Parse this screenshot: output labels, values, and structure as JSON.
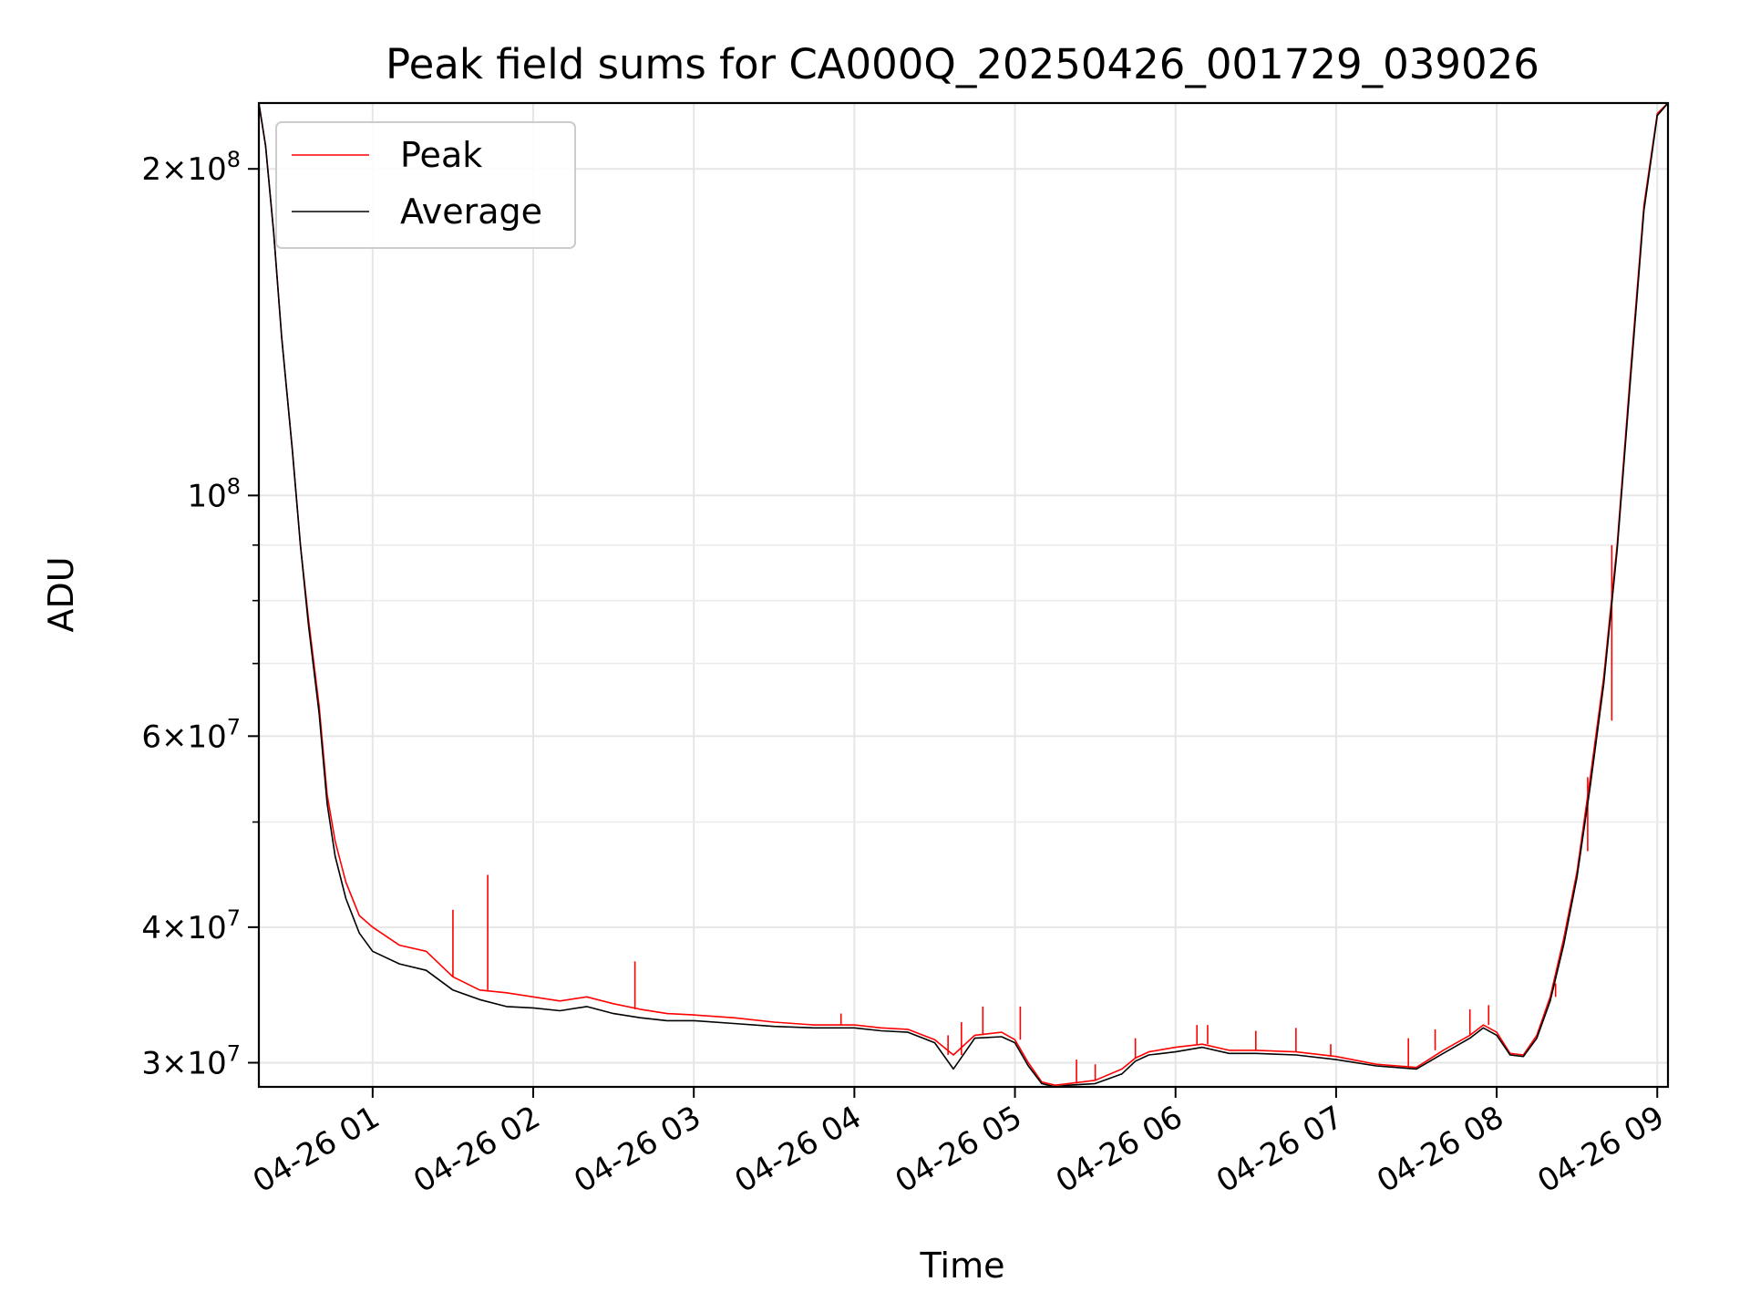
{
  "chart_data": {
    "type": "line",
    "title": "Peak field sums for CA000Q_20250426_001729_039026",
    "xlabel": "Time",
    "ylabel": "ADU",
    "yscale": "log",
    "ylim": [
      28500000,
      230000000
    ],
    "xlim": [
      "2025-04-26 00:17:29",
      "2025-04-26 09:04:00"
    ],
    "grid": true,
    "legend": "upper-left",
    "x_ticks": [
      {
        "value": "2025-04-26 01:00",
        "label": "04-26 01"
      },
      {
        "value": "2025-04-26 02:00",
        "label": "04-26 02"
      },
      {
        "value": "2025-04-26 03:00",
        "label": "04-26 03"
      },
      {
        "value": "2025-04-26 04:00",
        "label": "04-26 04"
      },
      {
        "value": "2025-04-26 05:00",
        "label": "04-26 05"
      },
      {
        "value": "2025-04-26 06:00",
        "label": "04-26 06"
      },
      {
        "value": "2025-04-26 07:00",
        "label": "04-26 07"
      },
      {
        "value": "2025-04-26 08:00",
        "label": "04-26 08"
      },
      {
        "value": "2025-04-26 09:00",
        "label": "04-26 09"
      }
    ],
    "y_ticks": [
      {
        "value": 30000000,
        "mant": "3",
        "exp": "7"
      },
      {
        "value": 40000000,
        "mant": "4",
        "exp": "7"
      },
      {
        "value": 60000000,
        "mant": "6",
        "exp": "7"
      },
      {
        "value": 100000000,
        "mant": "",
        "exp": "8"
      },
      {
        "value": 200000000,
        "mant": "2",
        "exp": "8"
      }
    ],
    "y_minor_ticks": [
      50000000,
      70000000,
      80000000,
      90000000
    ],
    "series": [
      {
        "name": "Peak",
        "color": "#ff0000",
        "x": [
          "2025-04-26 00:17:29",
          "2025-04-26 00:20",
          "2025-04-26 00:23",
          "2025-04-26 00:26",
          "2025-04-26 00:30",
          "2025-04-26 00:33",
          "2025-04-26 00:36",
          "2025-04-26 00:40",
          "2025-04-26 00:43",
          "2025-04-26 00:46",
          "2025-04-26 00:50",
          "2025-04-26 00:55",
          "2025-04-26 01:00",
          "2025-04-26 01:10",
          "2025-04-26 01:20",
          "2025-04-26 01:30",
          "2025-04-26 01:40",
          "2025-04-26 01:50",
          "2025-04-26 02:00",
          "2025-04-26 02:10",
          "2025-04-26 02:20",
          "2025-04-26 02:30",
          "2025-04-26 02:40",
          "2025-04-26 02:50",
          "2025-04-26 03:00",
          "2025-04-26 03:15",
          "2025-04-26 03:30",
          "2025-04-26 03:45",
          "2025-04-26 04:00",
          "2025-04-26 04:10",
          "2025-04-26 04:20",
          "2025-04-26 04:30",
          "2025-04-26 04:37",
          "2025-04-26 04:45",
          "2025-04-26 04:55",
          "2025-04-26 05:00",
          "2025-04-26 05:05",
          "2025-04-26 05:10",
          "2025-04-26 05:15",
          "2025-04-26 05:20",
          "2025-04-26 05:30",
          "2025-04-26 05:40",
          "2025-04-26 05:45",
          "2025-04-26 05:50",
          "2025-04-26 06:00",
          "2025-04-26 06:10",
          "2025-04-26 06:20",
          "2025-04-26 06:30",
          "2025-04-26 06:45",
          "2025-04-26 07:00",
          "2025-04-26 07:15",
          "2025-04-26 07:30",
          "2025-04-26 07:40",
          "2025-04-26 07:50",
          "2025-04-26 07:55",
          "2025-04-26 08:00",
          "2025-04-26 08:05",
          "2025-04-26 08:10",
          "2025-04-26 08:15",
          "2025-04-26 08:20",
          "2025-04-26 08:25",
          "2025-04-26 08:30",
          "2025-04-26 08:35",
          "2025-04-26 08:40",
          "2025-04-26 08:45",
          "2025-04-26 08:50",
          "2025-04-26 08:55",
          "2025-04-26 09:00",
          "2025-04-26 09:04"
        ],
        "y": [
          230000000,
          210000000,
          175000000,
          140000000,
          110000000,
          90000000,
          77000000,
          64000000,
          53000000,
          48000000,
          44000000,
          41000000,
          40000000,
          38500000,
          38000000,
          36000000,
          35000000,
          34800000,
          34500000,
          34200000,
          34500000,
          34000000,
          33600000,
          33300000,
          33200000,
          33000000,
          32700000,
          32500000,
          32500000,
          32300000,
          32200000,
          31500000,
          30500000,
          31800000,
          32000000,
          31500000,
          30000000,
          28800000,
          28600000,
          28700000,
          28900000,
          29600000,
          30300000,
          30700000,
          31000000,
          31200000,
          30800000,
          30800000,
          30700000,
          30400000,
          29900000,
          29700000,
          30800000,
          31800000,
          32500000,
          32000000,
          30600000,
          30500000,
          31800000,
          34500000,
          39000000,
          45000000,
          55000000,
          68000000,
          90000000,
          130000000,
          185000000,
          225000000,
          230000000
        ],
        "spikes": [
          {
            "x": "2025-04-26 01:30",
            "y": 41500000
          },
          {
            "x": "2025-04-26 01:43",
            "y": 44700000
          },
          {
            "x": "2025-04-26 02:38",
            "y": 37200000
          },
          {
            "x": "2025-04-26 03:55",
            "y": 33300000
          },
          {
            "x": "2025-04-26 04:35",
            "y": 31800000
          },
          {
            "x": "2025-04-26 04:40",
            "y": 32700000
          },
          {
            "x": "2025-04-26 04:48",
            "y": 33800000
          },
          {
            "x": "2025-04-26 05:02",
            "y": 33800000
          },
          {
            "x": "2025-04-26 05:23",
            "y": 30200000
          },
          {
            "x": "2025-04-26 05:30",
            "y": 29900000
          },
          {
            "x": "2025-04-26 05:45",
            "y": 31600000
          },
          {
            "x": "2025-04-26 06:08",
            "y": 32500000
          },
          {
            "x": "2025-04-26 06:12",
            "y": 32500000
          },
          {
            "x": "2025-04-26 06:30",
            "y": 32100000
          },
          {
            "x": "2025-04-26 06:45",
            "y": 32300000
          },
          {
            "x": "2025-04-26 06:58",
            "y": 31200000
          },
          {
            "x": "2025-04-26 07:27",
            "y": 31600000
          },
          {
            "x": "2025-04-26 07:37",
            "y": 32200000
          },
          {
            "x": "2025-04-26 07:50",
            "y": 33600000
          },
          {
            "x": "2025-04-26 07:57",
            "y": 33900000
          },
          {
            "x": "2025-04-26 08:22",
            "y": 35500000
          },
          {
            "x": "2025-04-26 08:34",
            "y": 47000000
          },
          {
            "x": "2025-04-26 08:43",
            "y": 62000000
          }
        ]
      },
      {
        "name": "Average",
        "color": "#000000",
        "x": [
          "2025-04-26 00:17:29",
          "2025-04-26 00:20",
          "2025-04-26 00:23",
          "2025-04-26 00:26",
          "2025-04-26 00:30",
          "2025-04-26 00:33",
          "2025-04-26 00:36",
          "2025-04-26 00:40",
          "2025-04-26 00:43",
          "2025-04-26 00:46",
          "2025-04-26 00:50",
          "2025-04-26 00:55",
          "2025-04-26 01:00",
          "2025-04-26 01:10",
          "2025-04-26 01:20",
          "2025-04-26 01:30",
          "2025-04-26 01:40",
          "2025-04-26 01:50",
          "2025-04-26 02:00",
          "2025-04-26 02:10",
          "2025-04-26 02:20",
          "2025-04-26 02:30",
          "2025-04-26 02:40",
          "2025-04-26 02:50",
          "2025-04-26 03:00",
          "2025-04-26 03:15",
          "2025-04-26 03:30",
          "2025-04-26 03:45",
          "2025-04-26 04:00",
          "2025-04-26 04:10",
          "2025-04-26 04:20",
          "2025-04-26 04:30",
          "2025-04-26 04:37",
          "2025-04-26 04:45",
          "2025-04-26 04:55",
          "2025-04-26 05:00",
          "2025-04-26 05:05",
          "2025-04-26 05:10",
          "2025-04-26 05:15",
          "2025-04-26 05:20",
          "2025-04-26 05:30",
          "2025-04-26 05:40",
          "2025-04-26 05:45",
          "2025-04-26 05:50",
          "2025-04-26 06:00",
          "2025-04-26 06:10",
          "2025-04-26 06:20",
          "2025-04-26 06:30",
          "2025-04-26 06:45",
          "2025-04-26 07:00",
          "2025-04-26 07:15",
          "2025-04-26 07:30",
          "2025-04-26 07:40",
          "2025-04-26 07:50",
          "2025-04-26 07:55",
          "2025-04-26 08:00",
          "2025-04-26 08:05",
          "2025-04-26 08:10",
          "2025-04-26 08:15",
          "2025-04-26 08:20",
          "2025-04-26 08:25",
          "2025-04-26 08:30",
          "2025-04-26 08:35",
          "2025-04-26 08:40",
          "2025-04-26 08:45",
          "2025-04-26 08:50",
          "2025-04-26 08:55",
          "2025-04-26 09:00",
          "2025-04-26 09:04"
        ],
        "y": [
          230000000,
          210000000,
          175000000,
          140000000,
          110000000,
          90000000,
          76000000,
          63000000,
          52000000,
          46500000,
          42500000,
          39500000,
          38000000,
          37000000,
          36500000,
          35000000,
          34300000,
          33800000,
          33700000,
          33500000,
          33800000,
          33300000,
          33000000,
          32800000,
          32800000,
          32600000,
          32400000,
          32300000,
          32300000,
          32100000,
          32000000,
          31300000,
          29600000,
          31600000,
          31700000,
          31300000,
          29800000,
          28700000,
          28500000,
          28600000,
          28700000,
          29300000,
          30100000,
          30500000,
          30700000,
          31000000,
          30600000,
          30600000,
          30500000,
          30200000,
          29800000,
          29600000,
          30600000,
          31600000,
          32300000,
          31800000,
          30500000,
          30400000,
          31600000,
          34200000,
          38500000,
          44500000,
          54000000,
          67000000,
          89000000,
          128000000,
          183000000,
          224000000,
          230000000
        ]
      }
    ]
  }
}
